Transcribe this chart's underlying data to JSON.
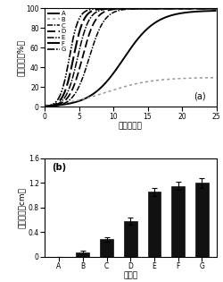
{
  "title_a": "(a)",
  "title_b": "(b)",
  "xlabel_a": "时间（天）",
  "ylabel_a": "结皮盖度（%）",
  "xlabel_b": "样品组",
  "ylabel_b": "结皮厚度（cm）",
  "xlim_a": [
    0,
    25
  ],
  "ylim_a": [
    0,
    100
  ],
  "categories": [
    "A",
    "B",
    "C",
    "D",
    "E",
    "F",
    "G"
  ],
  "ylim_b": [
    0,
    1.6
  ],
  "bar_values": [
    0.0,
    0.07,
    0.28,
    0.58,
    1.05,
    1.15,
    1.2
  ],
  "bar_errors": [
    0.0,
    0.03,
    0.04,
    0.06,
    0.06,
    0.07,
    0.08
  ],
  "bar_color": "#111111",
  "legend_labels": [
    "A",
    "B",
    "C",
    "D",
    "E",
    "F",
    "G"
  ],
  "curve_params": [
    [
      11.5,
      0.42,
      98
    ],
    [
      9.0,
      0.3,
      30
    ],
    [
      6.5,
      0.9,
      100
    ],
    [
      5.5,
      1.05,
      100
    ],
    [
      4.8,
      1.2,
      100
    ],
    [
      4.2,
      1.35,
      100
    ],
    [
      3.6,
      1.5,
      100
    ]
  ],
  "colors": [
    "#000000",
    "#999999",
    "#000000",
    "#000000",
    "#000000",
    "#000000",
    "#000000"
  ],
  "lwidths": [
    1.4,
    1.1,
    1.1,
    1.3,
    1.1,
    1.5,
    1.2
  ]
}
